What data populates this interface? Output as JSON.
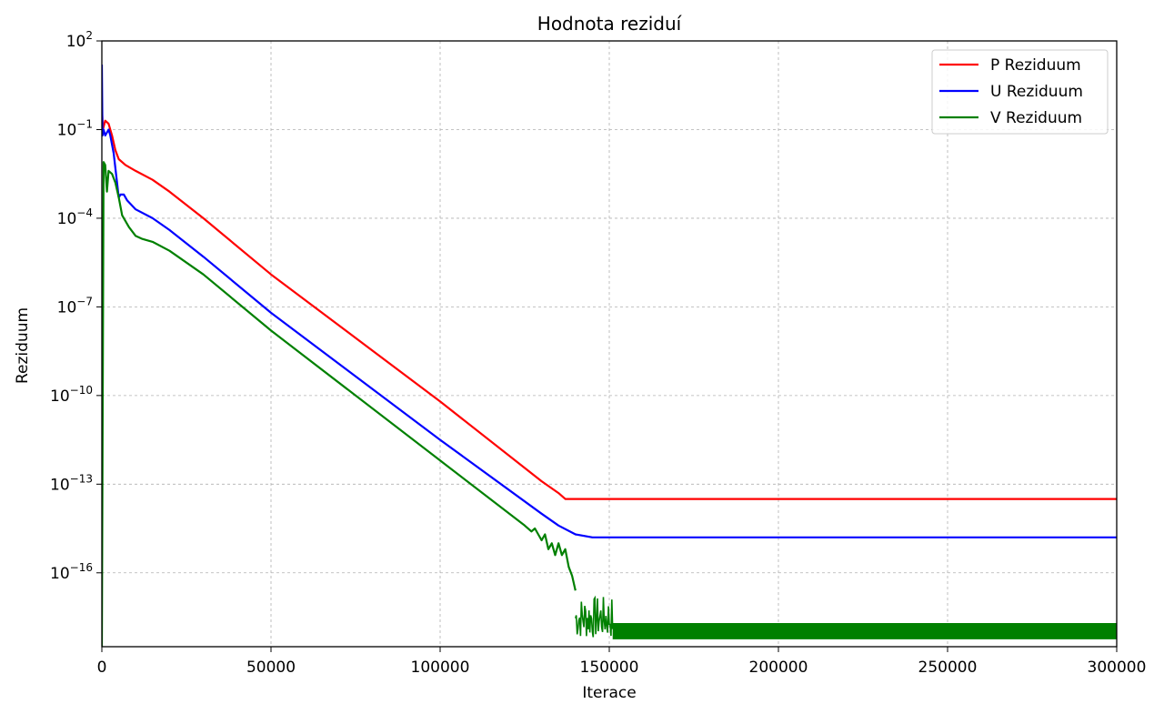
{
  "chart_data": {
    "type": "line",
    "title": "Hodnota reziduí",
    "xlabel": "Iterace",
    "ylabel": "Reziduum",
    "xlim": [
      0,
      300000
    ],
    "ylim_log10": [
      -18.5,
      2
    ],
    "yscale": "log",
    "grid": true,
    "legend_position": "top-right",
    "x_ticks": [
      0,
      50000,
      100000,
      150000,
      200000,
      250000,
      300000
    ],
    "x_tick_labels": [
      "0",
      "50000",
      "100000",
      "150000",
      "200000",
      "250000",
      "300000"
    ],
    "y_ticks_exp": [
      2,
      -1,
      -4,
      -7,
      -10,
      -13,
      -16
    ],
    "y_tick_labels": [
      {
        "base": "10",
        "exp": "2"
      },
      {
        "base": "10",
        "exp": "−1"
      },
      {
        "base": "10",
        "exp": "−4"
      },
      {
        "base": "10",
        "exp": "−7"
      },
      {
        "base": "10",
        "exp": "−10"
      },
      {
        "base": "10",
        "exp": "−13"
      },
      {
        "base": "10",
        "exp": "−16"
      }
    ],
    "series": [
      {
        "name": "P Rezi­duum",
        "color": "#ff0000",
        "x": [
          0,
          300,
          1000,
          2000,
          3000,
          4000,
          5000,
          7000,
          10000,
          15000,
          20000,
          30000,
          50000,
          100000,
          130000,
          135000,
          137000,
          140000,
          300000
        ],
        "log10": [
          -0.2,
          -1.0,
          -0.7,
          -0.8,
          -1.2,
          -1.7,
          -2.0,
          -2.2,
          -2.4,
          -2.7,
          -3.1,
          -4.0,
          -5.9,
          -10.2,
          -12.9,
          -13.3,
          -13.5,
          -13.5,
          -13.5
        ]
      },
      {
        "name": "U Rezi­duum",
        "color": "#0000ff",
        "x": [
          0,
          200,
          500,
          1000,
          2000,
          2500,
          3500,
          5000,
          5500,
          6500,
          7500,
          10000,
          15000,
          20000,
          30000,
          50000,
          100000,
          130000,
          135000,
          140000,
          145000,
          300000
        ],
        "log10": [
          1.2,
          -1.2,
          -1.0,
          -1.2,
          -1.0,
          -1.2,
          -1.8,
          -3.3,
          -3.2,
          -3.2,
          -3.4,
          -3.7,
          -4.0,
          -4.4,
          -5.3,
          -7.2,
          -11.5,
          -14.0,
          -14.4,
          -14.7,
          -14.8,
          -14.8
        ]
      },
      {
        "name": "V Rezi­duum",
        "color": "#008000",
        "x": [
          0,
          500,
          1000,
          1500,
          2000,
          3000,
          4000,
          5000,
          6000,
          8000,
          10000,
          12000,
          15000,
          20000,
          30000,
          50000,
          100000,
          125000,
          127000,
          128000,
          130000,
          131000,
          132000,
          133000,
          134000,
          135000,
          136000,
          137000,
          138000,
          139000,
          140000
        ],
        "log10": [
          -18.5,
          -2.1,
          -2.2,
          -3.1,
          -2.4,
          -2.5,
          -2.8,
          -3.3,
          -3.9,
          -4.3,
          -4.6,
          -4.7,
          -4.8,
          -5.1,
          -5.9,
          -7.8,
          -12.2,
          -14.4,
          -14.6,
          -14.5,
          -14.9,
          -14.7,
          -15.2,
          -15.0,
          -15.4,
          -15.0,
          -15.4,
          -15.2,
          -15.8,
          -16.1,
          -16.6
        ],
        "noise_from_x": 140000,
        "noise_band_log10": [
          -18.5,
          -16.8
        ],
        "band_from_x": 151000,
        "band_log10": [
          -18.25,
          -17.7
        ]
      }
    ]
  }
}
